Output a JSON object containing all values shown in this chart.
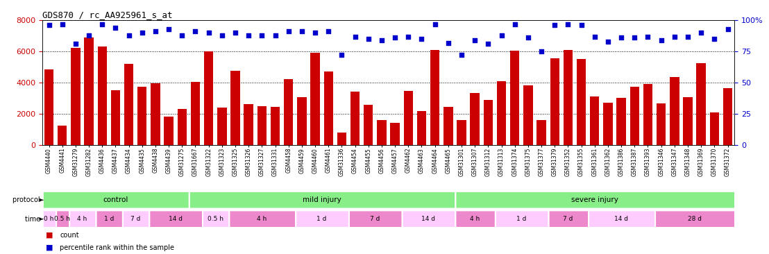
{
  "title": "GDS870 / rc_AA925961_s_at",
  "xlabels": [
    "GSM4440",
    "GSM4441",
    "GSM31279",
    "GSM31282",
    "GSM4436",
    "GSM4437",
    "GSM4434",
    "GSM4435",
    "GSM4438",
    "GSM4439",
    "GSM31275",
    "GSM31667",
    "GSM31322",
    "GSM31323",
    "GSM31325",
    "GSM31326",
    "GSM31327",
    "GSM31331",
    "GSM4458",
    "GSM4459",
    "GSM4460",
    "GSM4461",
    "GSM31336",
    "GSM4454",
    "GSM4455",
    "GSM4456",
    "GSM4457",
    "GSM4462",
    "GSM4463",
    "GSM4464",
    "GSM4465",
    "GSM31301",
    "GSM31307",
    "GSM31312",
    "GSM31313",
    "GSM31374",
    "GSM31375",
    "GSM31377",
    "GSM31379",
    "GSM31352",
    "GSM31355",
    "GSM31361",
    "GSM31362",
    "GSM31386",
    "GSM31387",
    "GSM31393",
    "GSM31346",
    "GSM31347",
    "GSM31348",
    "GSM31369",
    "GSM31370",
    "GSM31372"
  ],
  "bar_values": [
    4850,
    1250,
    6250,
    6900,
    6300,
    3500,
    5200,
    3750,
    3950,
    1800,
    2300,
    4050,
    6000,
    2400,
    4750,
    2600,
    2500,
    2450,
    4200,
    3050,
    5900,
    4700,
    800,
    3400,
    2550,
    1600,
    1400,
    3450,
    2150,
    6100,
    2450,
    1600,
    3350,
    2900,
    4100,
    6050,
    3800,
    1600,
    5550,
    6100,
    5500,
    3100,
    2700,
    3000,
    3750,
    3900,
    2650,
    4350,
    3050,
    5250,
    2100,
    3650
  ],
  "percentile_values": [
    96,
    97,
    81,
    88,
    97,
    94,
    88,
    90,
    91,
    93,
    88,
    91,
    90,
    88,
    90,
    88,
    88,
    88,
    91,
    91,
    90,
    91,
    72,
    87,
    85,
    84,
    86,
    87,
    85,
    97,
    82,
    72,
    84,
    81,
    88,
    97,
    86,
    75,
    96,
    97,
    96,
    87,
    83,
    86,
    86,
    87,
    84,
    87,
    87,
    90,
    85,
    93
  ],
  "bar_color": "#cc0000",
  "percentile_color": "#0000cc",
  "ylim_left": [
    0,
    8000
  ],
  "ylim_right": [
    0,
    100
  ],
  "yticks_left": [
    0,
    2000,
    4000,
    6000,
    8000
  ],
  "yticks_right": [
    0,
    25,
    50,
    75,
    100
  ],
  "proto_groups": [
    {
      "label": "control",
      "start": 0,
      "end": 11
    },
    {
      "label": "mild injury",
      "start": 11,
      "end": 31
    },
    {
      "label": "severe injury",
      "start": 31,
      "end": 52
    }
  ],
  "time_groups": [
    {
      "label": "0 h",
      "start": 0,
      "end": 1
    },
    {
      "label": "0.5 h",
      "start": 1,
      "end": 2
    },
    {
      "label": "4 h",
      "start": 2,
      "end": 4
    },
    {
      "label": "1 d",
      "start": 4,
      "end": 6
    },
    {
      "label": "7 d",
      "start": 6,
      "end": 8
    },
    {
      "label": "14 d",
      "start": 8,
      "end": 12
    },
    {
      "label": "0.5 h",
      "start": 12,
      "end": 14
    },
    {
      "label": "4 h",
      "start": 14,
      "end": 19
    },
    {
      "label": "1 d",
      "start": 19,
      "end": 23
    },
    {
      "label": "7 d",
      "start": 23,
      "end": 27
    },
    {
      "label": "14 d",
      "start": 27,
      "end": 31
    },
    {
      "label": "4 h",
      "start": 31,
      "end": 34
    },
    {
      "label": "1 d",
      "start": 34,
      "end": 38
    },
    {
      "label": "7 d",
      "start": 38,
      "end": 41
    },
    {
      "label": "14 d",
      "start": 41,
      "end": 46
    },
    {
      "label": "28 d",
      "start": 46,
      "end": 52
    }
  ],
  "proto_color": "#88ee88",
  "time_colors": [
    "#ffccff",
    "#ee88cc",
    "#ffccff",
    "#ee88cc",
    "#ffccff",
    "#ee88cc",
    "#ffccff",
    "#ee88cc",
    "#ffccff",
    "#ee88cc",
    "#ffccff",
    "#ee88cc",
    "#ffccff",
    "#ee88cc",
    "#ffccff",
    "#ee88cc"
  ],
  "background_color": "#ffffff"
}
